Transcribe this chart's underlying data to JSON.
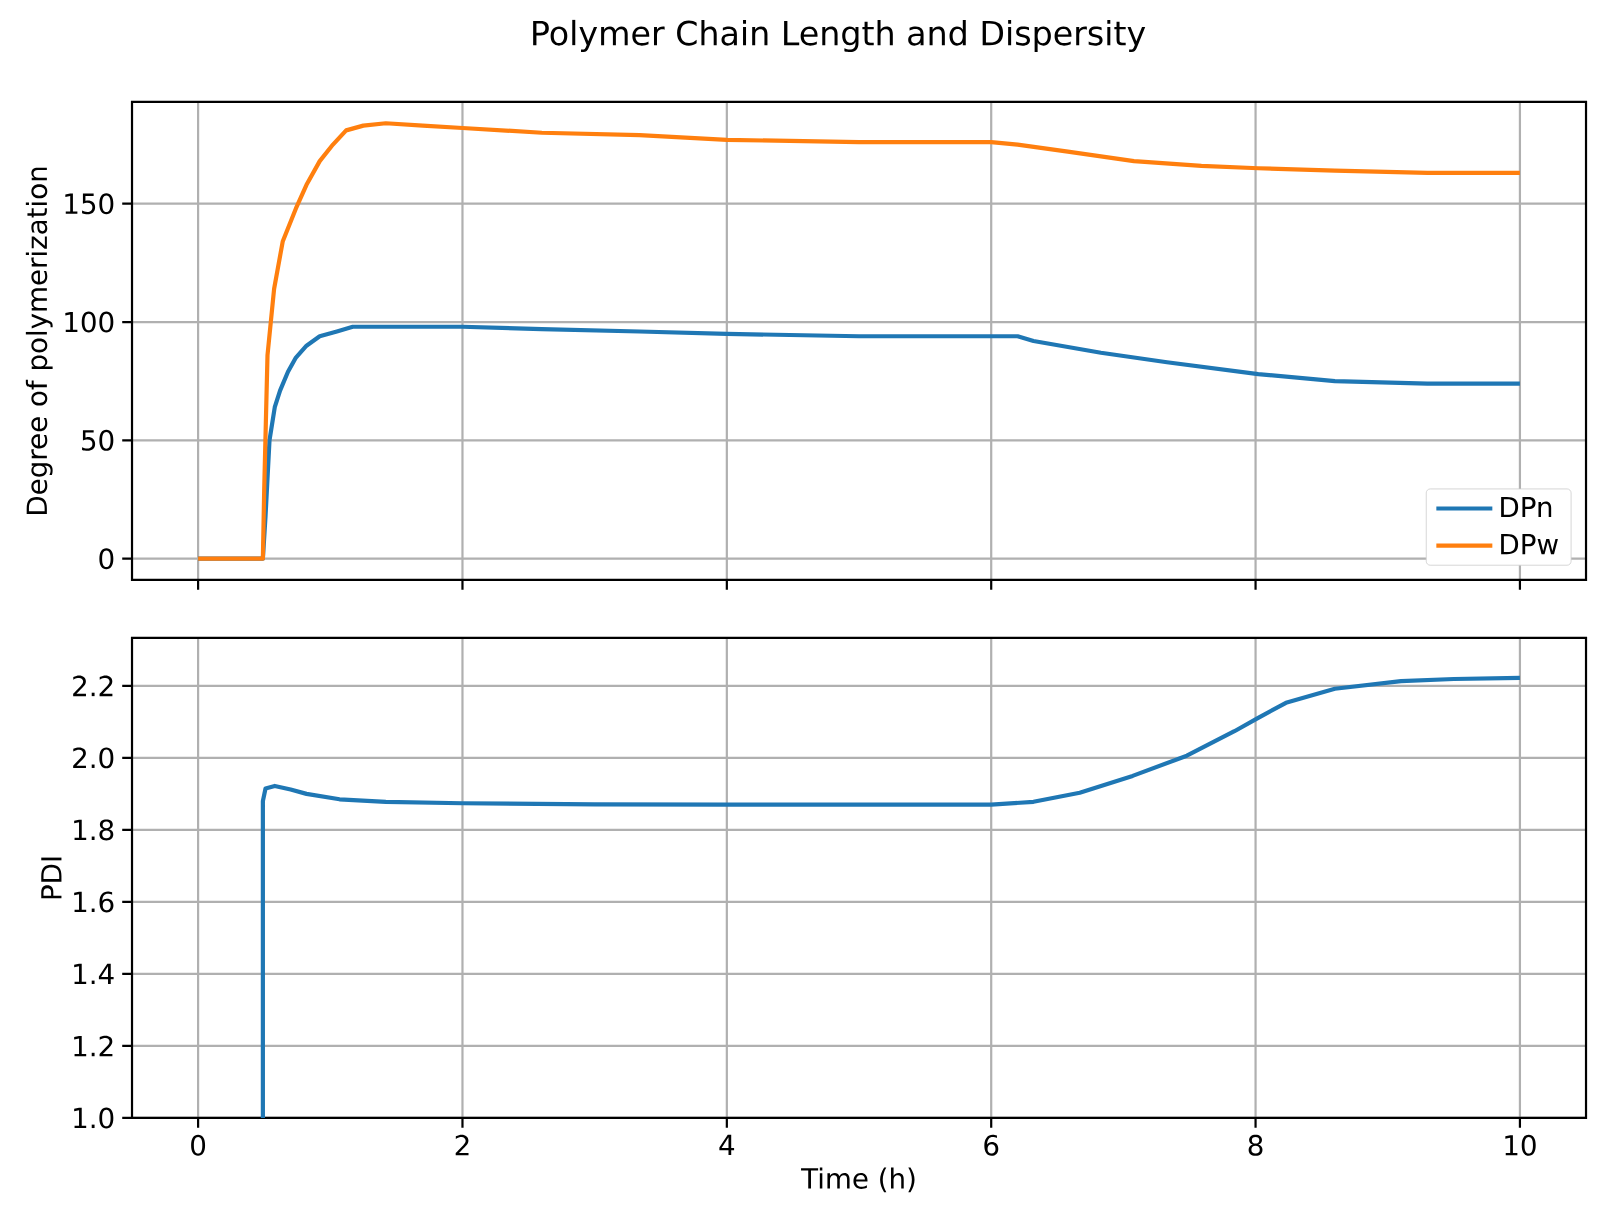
{
  "chart_data": [
    {
      "type": "line",
      "title": "Polymer Chain Length and Dispersity",
      "ylabel": "Degree of polymerization",
      "xlim": [
        -0.5,
        10.5
      ],
      "xticks": [
        0,
        2,
        4,
        6,
        8,
        10
      ],
      "ylim": [
        -9,
        193
      ],
      "yticks": [
        0,
        50,
        100,
        150
      ],
      "grid": true,
      "legend": "bottom right",
      "tick_labels": "y",
      "series": [
        {
          "name": "DPn",
          "color": "#1f77b4",
          "x": [
            0,
            0.49,
            0.51,
            0.54,
            0.58,
            0.62,
            0.68,
            0.74,
            0.82,
            0.92,
            1.05,
            1.17,
            1.42,
            1.7,
            2.0,
            2.6,
            3.34,
            4.0,
            5.0,
            6.0,
            6.2,
            6.32,
            6.83,
            7.33,
            8.02,
            8.6,
            9.3,
            10
          ],
          "values": [
            0,
            0,
            18,
            50,
            64,
            71,
            79,
            85,
            90,
            94,
            96,
            98,
            98,
            98,
            98,
            97,
            96,
            95,
            94,
            94,
            94,
            92,
            87,
            83,
            78,
            75,
            74,
            74
          ]
        },
        {
          "name": "DPw",
          "color": "#ff7f0e",
          "x": [
            0,
            0.49,
            0.5,
            0.525,
            0.575,
            0.64,
            0.74,
            0.82,
            0.92,
            1.02,
            1.12,
            1.25,
            1.42,
            1.7,
            2.0,
            2.6,
            3.34,
            4.0,
            5.0,
            6.0,
            6.2,
            6.58,
            7.08,
            7.59,
            8.02,
            8.6,
            9.3,
            10
          ],
          "values": [
            0,
            0,
            29,
            86,
            114,
            134,
            148,
            158,
            168,
            175,
            181,
            183,
            184,
            183,
            182,
            180,
            179,
            177,
            176,
            176,
            175,
            172,
            168,
            166,
            165,
            164,
            163,
            163
          ]
        }
      ]
    },
    {
      "type": "line",
      "xlabel": "Time (h)",
      "ylabel": "PDI",
      "xlim": [
        -0.5,
        10.5
      ],
      "xticks": [
        0,
        2,
        4,
        6,
        8,
        10
      ],
      "ylim": [
        1.0,
        2.333
      ],
      "yticks": [
        {
          "value": 1.0,
          "label": "1.0"
        },
        1.2,
        1.4,
        1.6,
        1.8,
        {
          "value": 2.0,
          "label": "2.0"
        },
        2.2
      ],
      "grid": true,
      "series": [
        {
          "color": "#1f77b4",
          "x": [
            0.49,
            0.49,
            0.51,
            0.58,
            0.7,
            0.82,
            1.07,
            1.42,
            2.0,
            3.0,
            4.0,
            5.0,
            6.0,
            6.32,
            6.67,
            7.07,
            7.48,
            7.84,
            8.02,
            8.23,
            8.6,
            9.1,
            9.5,
            10
          ],
          "values": [
            1.0,
            1.88,
            1.915,
            1.922,
            1.912,
            1.9,
            1.885,
            1.878,
            1.874,
            1.871,
            1.87,
            1.87,
            1.87,
            1.878,
            1.903,
            1.95,
            2.006,
            2.074,
            2.111,
            2.153,
            2.192,
            2.213,
            2.219,
            2.222
          ]
        }
      ]
    }
  ]
}
